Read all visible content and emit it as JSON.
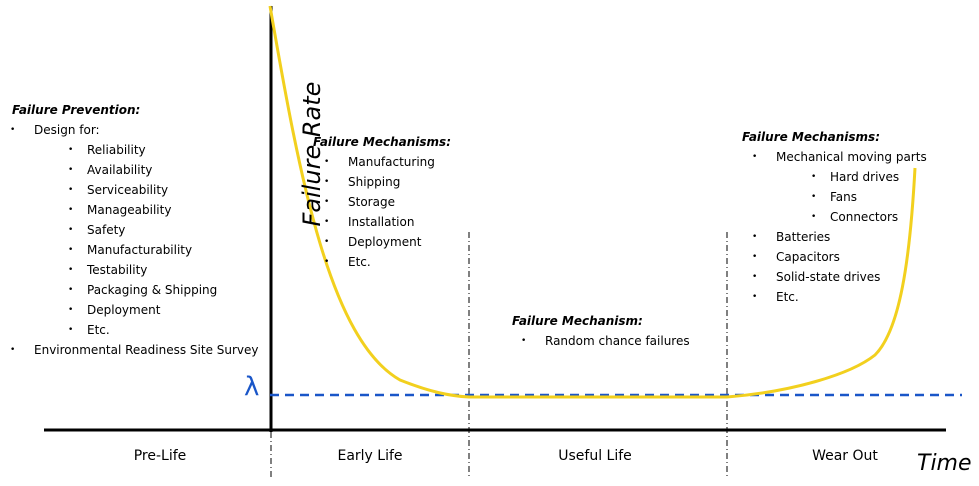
{
  "axes": {
    "y_label": "Failure Rate",
    "x_label": "Time",
    "lambda_label": "λ"
  },
  "phases": [
    "Pre-Life",
    "Early Life",
    "Useful Life",
    "Wear Out"
  ],
  "blocks": {
    "prevention": {
      "heading": "Failure Prevention:",
      "items": [
        {
          "text": "Design for:",
          "level": 0
        },
        {
          "text": "Reliability",
          "level": 2
        },
        {
          "text": "Availability",
          "level": 2
        },
        {
          "text": "Serviceability",
          "level": 2
        },
        {
          "text": "Manageability",
          "level": 2
        },
        {
          "text": "Safety",
          "level": 2
        },
        {
          "text": "Manufacturability",
          "level": 2
        },
        {
          "text": "Testability",
          "level": 2
        },
        {
          "text": "Packaging & Shipping",
          "level": 2
        },
        {
          "text": "Deployment",
          "level": 2
        },
        {
          "text": "Etc.",
          "level": 2
        },
        {
          "text": "Environmental Readiness Site Survey",
          "level": 0
        }
      ]
    },
    "early": {
      "heading": "Failure Mechanisms:",
      "items": [
        {
          "text": "Manufacturing",
          "level": 1
        },
        {
          "text": "Shipping",
          "level": 1
        },
        {
          "text": "Storage",
          "level": 1
        },
        {
          "text": "Installation",
          "level": 1
        },
        {
          "text": "Deployment",
          "level": 1
        },
        {
          "text": "Etc.",
          "level": 1
        }
      ]
    },
    "useful": {
      "heading": "Failure Mechanism:",
      "items": [
        {
          "text": "Random chance failures",
          "level": 1
        }
      ]
    },
    "wear": {
      "heading": "Failure Mechanisms:",
      "items": [
        {
          "text": "Mechanical moving parts",
          "level": 1
        },
        {
          "text": "Hard drives",
          "level": 3
        },
        {
          "text": "Fans",
          "level": 3
        },
        {
          "text": "Connectors",
          "level": 3
        },
        {
          "text": "Batteries",
          "level": 1
        },
        {
          "text": "Capacitors",
          "level": 1
        },
        {
          "text": "Solid-state drives",
          "level": 1
        },
        {
          "text": "Etc.",
          "level": 1
        }
      ]
    }
  },
  "colors": {
    "curve": "#f2d01e",
    "lambda_line": "#1a56c8",
    "axis": "#000000"
  }
}
